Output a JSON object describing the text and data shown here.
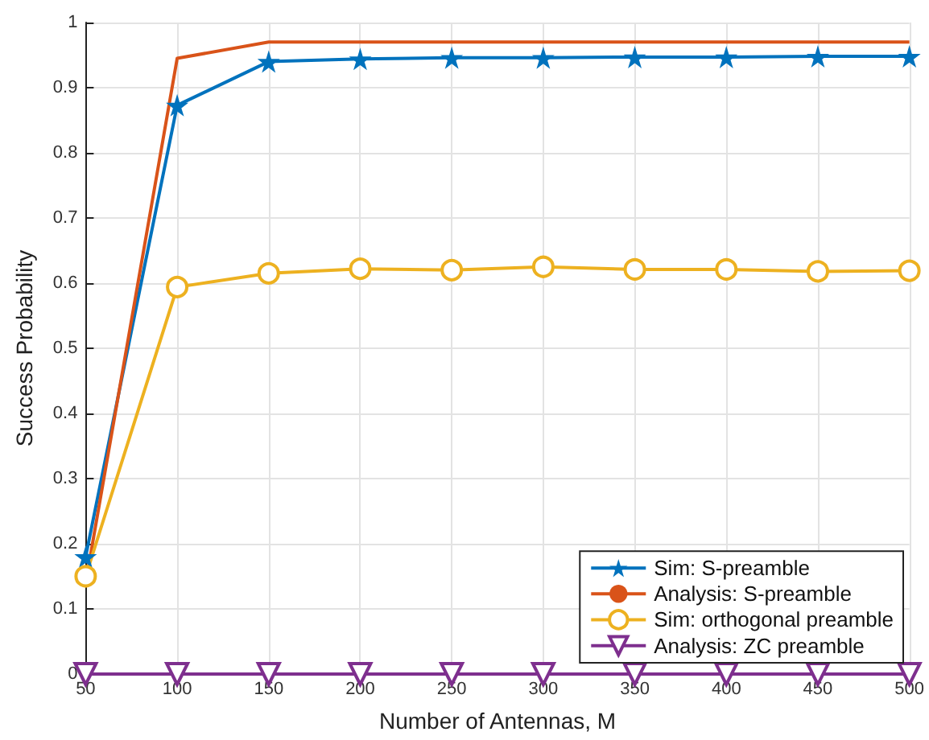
{
  "chart_data": {
    "type": "line",
    "xlabel": "Number of Antennas, M",
    "ylabel": "Success Probability",
    "x": [
      50,
      100,
      150,
      200,
      250,
      300,
      350,
      400,
      450,
      500
    ],
    "xlim": [
      50,
      500
    ],
    "xticks": [
      50,
      100,
      150,
      200,
      250,
      300,
      350,
      400,
      450,
      500
    ],
    "ylim": [
      0,
      1
    ],
    "yticks": [
      0,
      0.1,
      0.2,
      0.3,
      0.4,
      0.5,
      0.6,
      0.7,
      0.8,
      0.9,
      1
    ],
    "grid": true,
    "legend": "bottom right",
    "series": [
      {
        "name": "Sim: S-preamble",
        "color": "#0072bd",
        "marker": "star",
        "values": [
          0.18,
          0.873,
          0.94,
          0.944,
          0.946,
          0.946,
          0.947,
          0.947,
          0.948,
          0.948
        ]
      },
      {
        "name": "Analysis: S-preamble",
        "color": "#d95319",
        "marker": "none",
        "values": [
          0.14,
          0.945,
          0.97,
          0.97,
          0.97,
          0.97,
          0.97,
          0.97,
          0.97,
          0.97
        ]
      },
      {
        "name": "Sim: orthogonal preamble",
        "color": "#edb120",
        "marker": "circle",
        "values": [
          0.15,
          0.594,
          0.615,
          0.622,
          0.62,
          0.625,
          0.621,
          0.621,
          0.618,
          0.619
        ]
      },
      {
        "name": "Analysis: ZC preamble",
        "color": "#7e2f8e",
        "marker": "triangle",
        "values": [
          0,
          0,
          0,
          0,
          0,
          0,
          0,
          0,
          0,
          0
        ]
      }
    ]
  }
}
